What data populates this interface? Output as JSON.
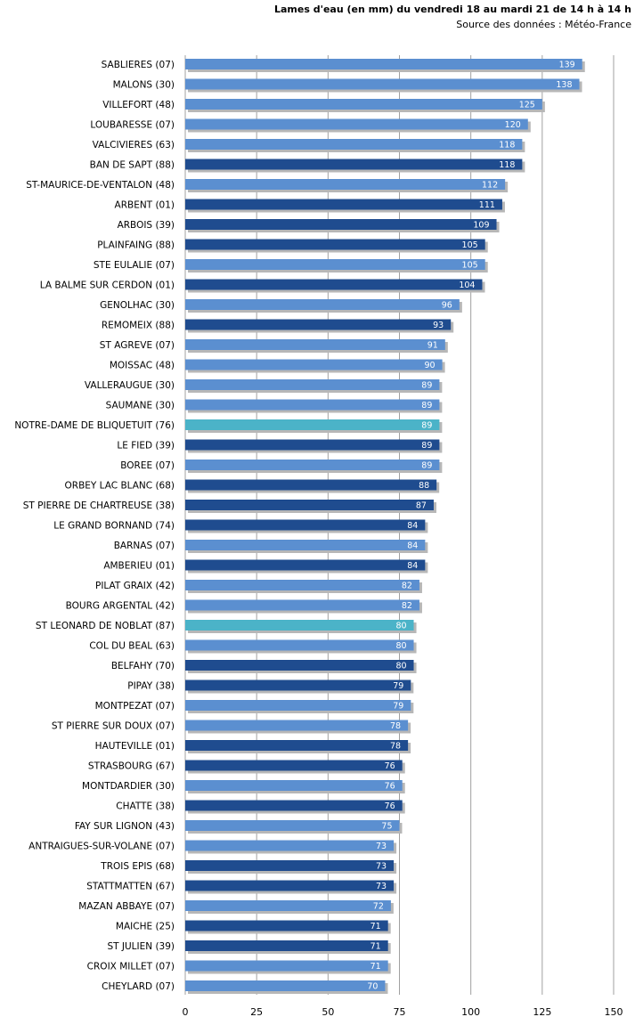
{
  "header": {
    "title": "Lames d'eau (en mm) du vendredi 18 au mardi 21 de 14 h à 14 h",
    "source": "Source des données : Météo-France"
  },
  "colors": {
    "light": "#5b8fd0",
    "dark": "#1f4c8f",
    "highlight": "#4bb3c8",
    "shadow": "#b7b7b7",
    "grid": "#a0a0a0"
  },
  "chart_data": {
    "type": "bar",
    "orientation": "horizontal",
    "xlim": [
      0,
      150
    ],
    "xticks": [
      0,
      25,
      50,
      75,
      100,
      125,
      150
    ],
    "grid": true,
    "categories": [
      "SABLIERES (07)",
      "MALONS (30)",
      "VILLEFORT (48)",
      "LOUBARESSE (07)",
      "VALCIVIERES (63)",
      "BAN DE SAPT (88)",
      "ST-MAURICE-DE-VENTALON (48)",
      "ARBENT (01)",
      "ARBOIS (39)",
      "PLAINFAING (88)",
      "STE EULALIE (07)",
      "LA BALME SUR CERDON (01)",
      "GENOLHAC (30)",
      "REMOMEIX (88)",
      "ST AGREVE (07)",
      "MOISSAC (48)",
      "VALLERAUGUE (30)",
      "SAUMANE (30)",
      "NOTRE-DAME DE BLIQUETUIT (76)",
      "LE FIED (39)",
      "BOREE (07)",
      "ORBEY LAC BLANC (68)",
      "ST PIERRE DE CHARTREUSE (38)",
      "LE GRAND BORNAND (74)",
      "BARNAS (07)",
      "AMBERIEU (01)",
      "PILAT GRAIX (42)",
      "BOURG ARGENTAL (42)",
      "ST LEONARD DE NOBLAT (87)",
      "COL DU BEAL (63)",
      "BELFAHY (70)",
      "PIPAY (38)",
      "MONTPEZAT (07)",
      "ST PIERRE SUR DOUX (07)",
      "HAUTEVILLE (01)",
      "STRASBOURG (67)",
      "MONTDARDIER (30)",
      "CHATTE (38)",
      "FAY SUR LIGNON (43)",
      "ANTRAIGUES-SUR-VOLANE (07)",
      "TROIS EPIS (68)",
      "STATTMATTEN (67)",
      "MAZAN ABBAYE (07)",
      "MAICHE (25)",
      "ST JULIEN (39)",
      "CROIX MILLET (07)",
      "CHEYLARD (07)"
    ],
    "values": [
      139,
      138,
      125,
      120,
      118,
      118,
      112,
      111,
      109,
      105,
      105,
      104,
      96,
      93,
      91,
      90,
      89,
      89,
      89,
      89,
      89,
      88,
      87,
      84,
      84,
      84,
      82,
      82,
      80,
      80,
      80,
      79,
      79,
      78,
      78,
      76,
      76,
      76,
      75,
      73,
      73,
      73,
      72,
      71,
      71,
      71,
      70
    ],
    "shades": [
      "light",
      "light",
      "light",
      "light",
      "light",
      "dark",
      "light",
      "dark",
      "dark",
      "dark",
      "light",
      "dark",
      "light",
      "dark",
      "light",
      "light",
      "light",
      "light",
      "highlight",
      "dark",
      "light",
      "dark",
      "dark",
      "dark",
      "light",
      "dark",
      "light",
      "light",
      "highlight",
      "light",
      "dark",
      "dark",
      "light",
      "light",
      "dark",
      "dark",
      "light",
      "dark",
      "light",
      "light",
      "dark",
      "dark",
      "light",
      "dark",
      "dark",
      "light",
      "light"
    ]
  }
}
